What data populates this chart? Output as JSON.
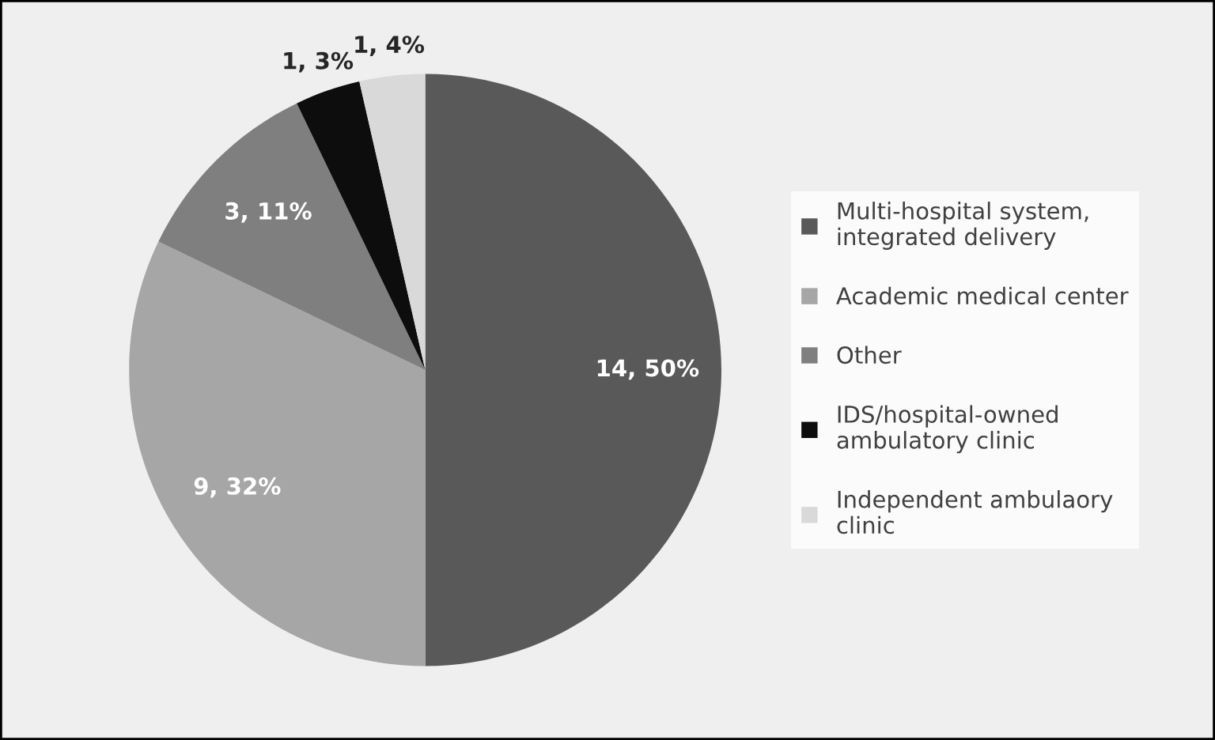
{
  "chart_data": {
    "type": "pie",
    "categories": [
      "Multi-hospital system,\nintegrated delivery",
      "Academic medical center",
      "Other",
      "IDS/hospital-owned\nambulatory clinic",
      "Independent ambulaory\nclinic"
    ],
    "values": [
      14,
      9,
      3,
      1,
      1
    ],
    "value_labels": [
      "14, 50%",
      "9, 32%",
      "3, 11%",
      "1, 3%",
      "1, 4%"
    ],
    "colors": [
      "#595959",
      "#a6a6a6",
      "#7f7f7f",
      "#0d0d0d",
      "#d9d9d9"
    ],
    "legend": "right"
  }
}
